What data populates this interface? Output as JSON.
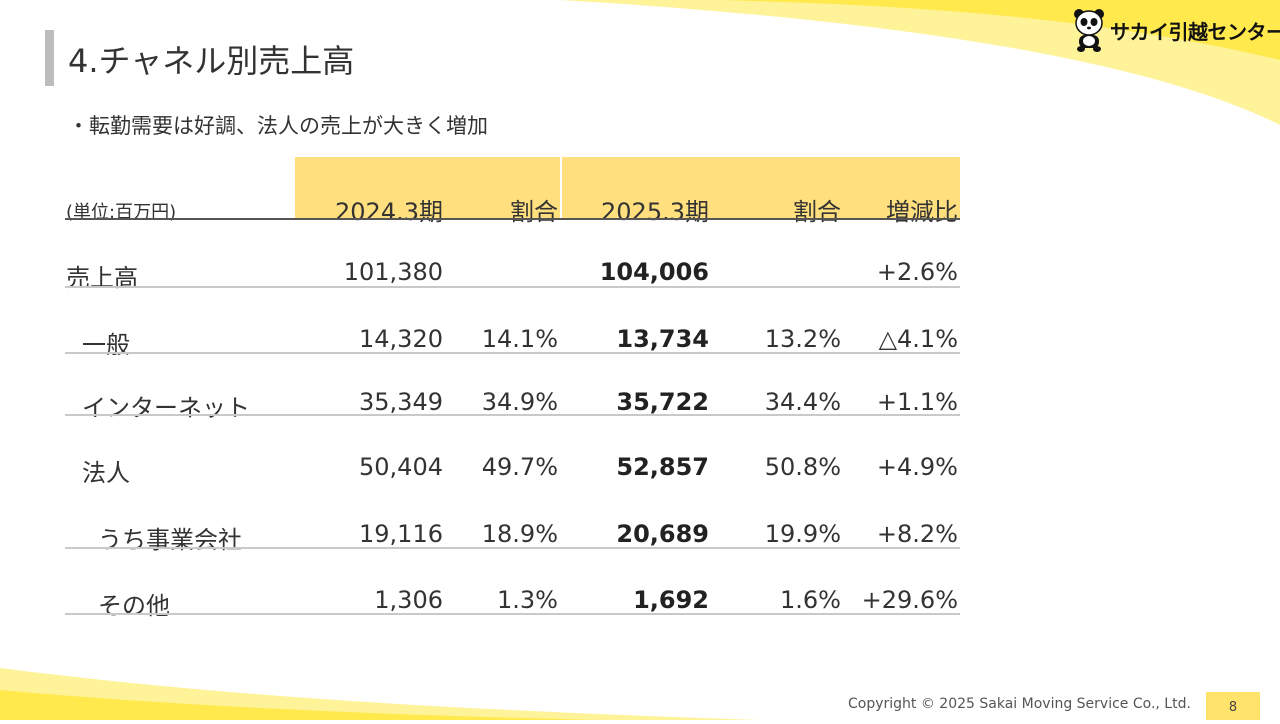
{
  "slide": {
    "title": "4.チャネル別売上高",
    "bullet": "・転勤需要は好調、法人の売上が大きく増加",
    "unit_label": "(単位:百万円)",
    "page_number": "8"
  },
  "logo": {
    "text": "サカイ引越センター",
    "icon": "panda-icon"
  },
  "table": {
    "headers": [
      "2024.3期",
      "割合",
      "2025.3期",
      "割合",
      "増減比"
    ],
    "rows": [
      {
        "label": "売上高",
        "v2024": "101,380",
        "s2024": "",
        "v2025": "104,006",
        "s2025": "",
        "change": "+2.6%"
      },
      {
        "label": "一般",
        "v2024": "14,320",
        "s2024": "14.1%",
        "v2025": "13,734",
        "s2025": "13.2%",
        "change": "△4.1%"
      },
      {
        "label": "インターネット",
        "v2024": "35,349",
        "s2024": "34.9%",
        "v2025": "35,722",
        "s2025": "34.4%",
        "change": "+1.1%"
      },
      {
        "label": "法人",
        "v2024": "50,404",
        "s2024": "49.7%",
        "v2025": "52,857",
        "s2025": "50.8%",
        "change": "+4.9%"
      },
      {
        "label": "うち事業会社",
        "v2024": "19,116",
        "s2024": "18.9%",
        "v2025": "20,689",
        "s2025": "19.9%",
        "change": "+8.2%"
      },
      {
        "label": "その他",
        "v2024": "1,306",
        "s2024": "1.3%",
        "v2025": "1,692",
        "s2025": "1.6%",
        "change": "+29.6%"
      }
    ]
  },
  "footer": {
    "copyright": "Copyright © 2025 Sakai Moving Service Co., Ltd."
  },
  "colors": {
    "accent_yellow": "#ffdf7e",
    "swoosh_yellow": "#ffe94d",
    "title_bar": "#bdbdbd"
  }
}
